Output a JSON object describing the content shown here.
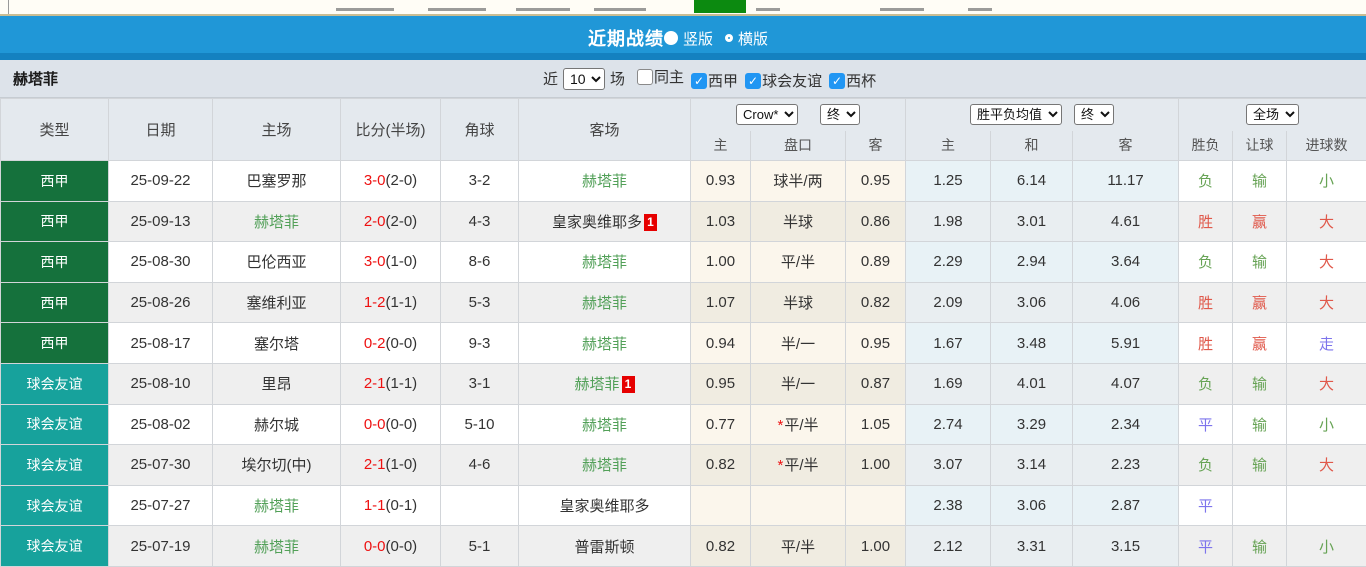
{
  "header": {
    "title": "近期战绩",
    "vertical_label": "竖版",
    "horizontal_label": "横版",
    "selected_layout": "竖版"
  },
  "filter": {
    "team": "赫塔菲",
    "recent_label": "近",
    "count_value": "10",
    "matches_label": "场",
    "checkboxes": [
      {
        "label": "同主",
        "checked": false
      },
      {
        "label": "西甲",
        "checked": true
      },
      {
        "label": "球会友谊",
        "checked": true
      },
      {
        "label": "西杯",
        "checked": true
      }
    ]
  },
  "table": {
    "columns": {
      "type": "类型",
      "date": "日期",
      "home": "主场",
      "score": "比分(半场)",
      "corners": "角球",
      "away": "客场"
    },
    "selects": {
      "company": "Crow*",
      "company_time": "终",
      "mean": "胜平负均值",
      "mean_time": "终",
      "scope": "全场"
    },
    "sub_columns": [
      "主",
      "盘口",
      "客",
      "主",
      "和",
      "客",
      "胜负",
      "让球",
      "进球数"
    ],
    "rows": [
      {
        "league": "西甲",
        "date": "25-09-22",
        "home": "巴塞罗那",
        "home_green": false,
        "home_badge": false,
        "score": "3-0",
        "half": "(2-0)",
        "corners": "3-2",
        "away": "赫塔菲",
        "away_green": true,
        "away_badge": false,
        "odds_home": "0.93",
        "handicap": "球半/两",
        "handicap_star": false,
        "odds_away": "0.95",
        "avg_win": "1.25",
        "avg_draw": "6.14",
        "avg_lose": "11.17",
        "res_wdl": "负",
        "res_wdl_color": "green",
        "res_handicap": "输",
        "res_handicap_color": "green",
        "res_goals": "小",
        "res_goals_color": "green"
      },
      {
        "league": "西甲",
        "date": "25-09-13",
        "home": "赫塔菲",
        "home_green": true,
        "home_badge": false,
        "score": "2-0",
        "half": "(2-0)",
        "corners": "4-3",
        "away": "皇家奥维耶多",
        "away_green": false,
        "away_badge": true,
        "odds_home": "1.03",
        "handicap": "半球",
        "handicap_star": false,
        "odds_away": "0.86",
        "avg_win": "1.98",
        "avg_draw": "3.01",
        "avg_lose": "4.61",
        "res_wdl": "胜",
        "res_wdl_color": "red",
        "res_handicap": "赢",
        "res_handicap_color": "red",
        "res_goals": "大",
        "res_goals_color": "red"
      },
      {
        "league": "西甲",
        "date": "25-08-30",
        "home": "巴伦西亚",
        "home_green": false,
        "home_badge": false,
        "score": "3-0",
        "half": "(1-0)",
        "corners": "8-6",
        "away": "赫塔菲",
        "away_green": true,
        "away_badge": false,
        "odds_home": "1.00",
        "handicap": "平/半",
        "handicap_star": false,
        "odds_away": "0.89",
        "avg_win": "2.29",
        "avg_draw": "2.94",
        "avg_lose": "3.64",
        "res_wdl": "负",
        "res_wdl_color": "green",
        "res_handicap": "输",
        "res_handicap_color": "green",
        "res_goals": "大",
        "res_goals_color": "red"
      },
      {
        "league": "西甲",
        "date": "25-08-26",
        "home": "塞维利亚",
        "home_green": false,
        "home_badge": false,
        "score": "1-2",
        "half": "(1-1)",
        "corners": "5-3",
        "away": "赫塔菲",
        "away_green": true,
        "away_badge": false,
        "odds_home": "1.07",
        "handicap": "半球",
        "handicap_star": false,
        "odds_away": "0.82",
        "avg_win": "2.09",
        "avg_draw": "3.06",
        "avg_lose": "4.06",
        "res_wdl": "胜",
        "res_wdl_color": "red",
        "res_handicap": "赢",
        "res_handicap_color": "red",
        "res_goals": "大",
        "res_goals_color": "red"
      },
      {
        "league": "西甲",
        "date": "25-08-17",
        "home": "塞尔塔",
        "home_green": false,
        "home_badge": false,
        "score": "0-2",
        "half": "(0-0)",
        "corners": "9-3",
        "away": "赫塔菲",
        "away_green": true,
        "away_badge": false,
        "odds_home": "0.94",
        "handicap": "半/一",
        "handicap_star": false,
        "odds_away": "0.95",
        "avg_win": "1.67",
        "avg_draw": "3.48",
        "avg_lose": "5.91",
        "res_wdl": "胜",
        "res_wdl_color": "red",
        "res_handicap": "赢",
        "res_handicap_color": "red",
        "res_goals": "走",
        "res_goals_color": "blue"
      },
      {
        "league": "球会友谊",
        "date": "25-08-10",
        "home": "里昂",
        "home_green": false,
        "home_badge": false,
        "score": "2-1",
        "half": "(1-1)",
        "corners": "3-1",
        "away": "赫塔菲",
        "away_green": true,
        "away_badge": true,
        "odds_home": "0.95",
        "handicap": "半/一",
        "handicap_star": false,
        "odds_away": "0.87",
        "avg_win": "1.69",
        "avg_draw": "4.01",
        "avg_lose": "4.07",
        "res_wdl": "负",
        "res_wdl_color": "green",
        "res_handicap": "输",
        "res_handicap_color": "green",
        "res_goals": "大",
        "res_goals_color": "red"
      },
      {
        "league": "球会友谊",
        "date": "25-08-02",
        "home": "赫尔城",
        "home_green": false,
        "home_badge": false,
        "score": "0-0",
        "half": "(0-0)",
        "corners": "5-10",
        "away": "赫塔菲",
        "away_green": true,
        "away_badge": false,
        "odds_home": "0.77",
        "handicap": "平/半",
        "handicap_star": true,
        "odds_away": "1.05",
        "avg_win": "2.74",
        "avg_draw": "3.29",
        "avg_lose": "2.34",
        "res_wdl": "平",
        "res_wdl_color": "blue",
        "res_handicap": "输",
        "res_handicap_color": "green",
        "res_goals": "小",
        "res_goals_color": "green"
      },
      {
        "league": "球会友谊",
        "date": "25-07-30",
        "home": "埃尔切(中)",
        "home_green": false,
        "home_badge": false,
        "score": "2-1",
        "half": "(1-0)",
        "corners": "4-6",
        "away": "赫塔菲",
        "away_green": true,
        "away_badge": false,
        "odds_home": "0.82",
        "handicap": "平/半",
        "handicap_star": true,
        "odds_away": "1.00",
        "avg_win": "3.07",
        "avg_draw": "3.14",
        "avg_lose": "2.23",
        "res_wdl": "负",
        "res_wdl_color": "green",
        "res_handicap": "输",
        "res_handicap_color": "green",
        "res_goals": "大",
        "res_goals_color": "red"
      },
      {
        "league": "球会友谊",
        "date": "25-07-27",
        "home": "赫塔菲",
        "home_green": true,
        "home_badge": false,
        "score": "1-1",
        "half": "(0-1)",
        "corners": "",
        "away": "皇家奥维耶多",
        "away_green": false,
        "away_badge": false,
        "odds_home": "",
        "handicap": "",
        "handicap_star": false,
        "odds_away": "",
        "avg_win": "2.38",
        "avg_draw": "3.06",
        "avg_lose": "2.87",
        "res_wdl": "平",
        "res_wdl_color": "blue",
        "res_handicap": "",
        "res_handicap_color": "",
        "res_goals": "",
        "res_goals_color": ""
      },
      {
        "league": "球会友谊",
        "date": "25-07-19",
        "home": "赫塔菲",
        "home_green": true,
        "home_badge": false,
        "score": "0-0",
        "half": "(0-0)",
        "corners": "5-1",
        "away": "普雷斯顿",
        "away_green": false,
        "away_badge": false,
        "odds_home": "0.82",
        "handicap": "平/半",
        "handicap_star": false,
        "odds_away": "1.00",
        "avg_win": "2.12",
        "avg_draw": "3.31",
        "avg_lose": "3.15",
        "res_wdl": "平",
        "res_wdl_color": "blue",
        "res_handicap": "输",
        "res_handicap_color": "green",
        "res_goals": "小",
        "res_goals_color": "green"
      }
    ]
  },
  "colors": {
    "title_bar_blue": "#2097d7",
    "liga_green": "#15713c",
    "friendly_teal": "#17a29c",
    "checkbox_blue": "#2196f3",
    "score_red": "#ee1111",
    "team_green": "#52a058",
    "win_red": "#e0584a",
    "lose_green": "#67a355",
    "draw_purple": "#7d74ec",
    "active_nav_tab_green": "#0c8a10",
    "badge_red": "#e60000"
  }
}
